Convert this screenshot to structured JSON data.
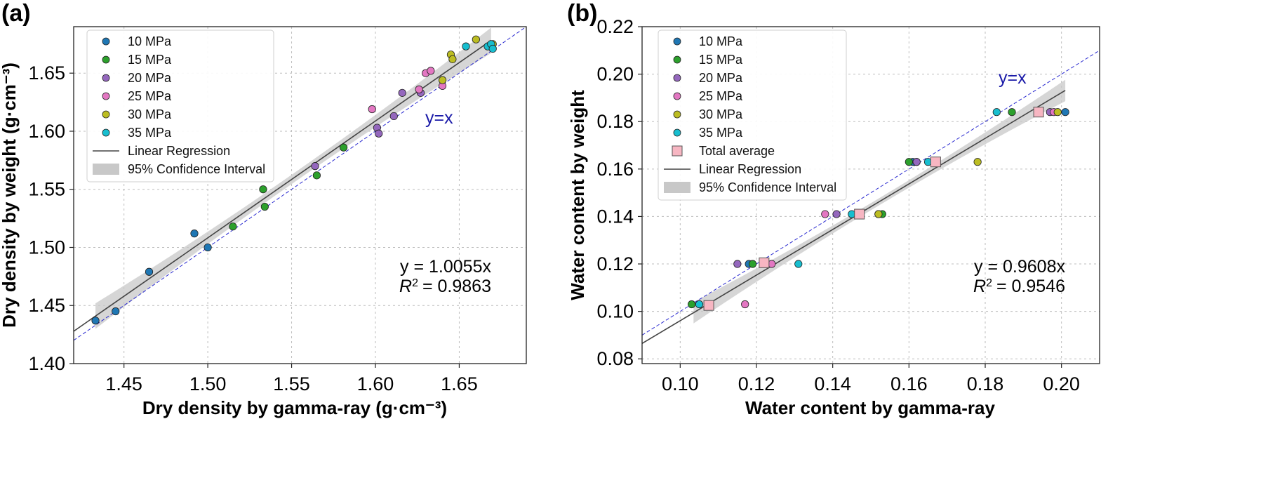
{
  "colors": {
    "10 MPa": "#1f77b4",
    "15 MPa": "#2ca02c",
    "20 MPa": "#9467bd",
    "25 MPa": "#e377c2",
    "30 MPa": "#bcbd22",
    "35 MPa": "#17becf",
    "average": "#f7b6c2",
    "regression": "#444444",
    "ci": "#c8c8c8",
    "identity": "#2a2ad0"
  },
  "chart_data": [
    {
      "panel": "(a)",
      "type": "scatter",
      "xlabel": "Dry density by gamma-ray (g·cm⁻³)",
      "ylabel": "Dry density by weight (g·cm⁻³)",
      "xlim": [
        1.42,
        1.69
      ],
      "ylim": [
        1.4,
        1.69
      ],
      "xticks": [
        1.45,
        1.5,
        1.55,
        1.6,
        1.65
      ],
      "xtick_labels": [
        "1.45",
        "1.50",
        "1.55",
        "1.60",
        "1.65"
      ],
      "yticks": [
        1.4,
        1.45,
        1.5,
        1.55,
        1.6,
        1.65
      ],
      "ytick_labels": [
        "1.40",
        "1.45",
        "1.50",
        "1.55",
        "1.60",
        "1.65"
      ],
      "grid": true,
      "legend_position": "top-left",
      "series": [
        {
          "name": "10 MPa",
          "points": [
            [
              1.433,
              1.437
            ],
            [
              1.445,
              1.445
            ],
            [
              1.465,
              1.479
            ],
            [
              1.492,
              1.512
            ],
            [
              1.5,
              1.5
            ],
            [
              1.669,
              1.674
            ]
          ]
        },
        {
          "name": "15 MPa",
          "points": [
            [
              1.515,
              1.518
            ],
            [
              1.533,
              1.55
            ],
            [
              1.534,
              1.535
            ],
            [
              1.565,
              1.562
            ],
            [
              1.581,
              1.586
            ]
          ]
        },
        {
          "name": "20 MPa",
          "points": [
            [
              1.564,
              1.57
            ],
            [
              1.601,
              1.603
            ],
            [
              1.602,
              1.598
            ],
            [
              1.611,
              1.613
            ],
            [
              1.616,
              1.633
            ],
            [
              1.627,
              1.633
            ]
          ]
        },
        {
          "name": "25 MPa",
          "points": [
            [
              1.598,
              1.619
            ],
            [
              1.626,
              1.636
            ],
            [
              1.63,
              1.65
            ],
            [
              1.633,
              1.652
            ],
            [
              1.64,
              1.639
            ]
          ]
        },
        {
          "name": "30 MPa",
          "points": [
            [
              1.64,
              1.644
            ],
            [
              1.645,
              1.666
            ],
            [
              1.646,
              1.662
            ],
            [
              1.66,
              1.679
            ],
            [
              1.67,
              1.675
            ]
          ]
        },
        {
          "name": "35 MPa",
          "points": [
            [
              1.654,
              1.673
            ],
            [
              1.667,
              1.673
            ],
            [
              1.669,
              1.675
            ],
            [
              1.67,
              1.671
            ]
          ]
        }
      ],
      "regression": {
        "label": "Linear Regression",
        "slope": 1.0055,
        "x_range": [
          1.42,
          1.669
        ]
      },
      "confidence_interval": {
        "label": "95% Confidence Interval",
        "x_range": [
          1.433,
          1.669
        ],
        "half_width_ends": 0.011,
        "half_width_mid": 0.004
      },
      "identity_label": "y=x",
      "equation": "y = 1.0055x",
      "r2_prefix": "R",
      "r2_value": "= 0.9863"
    },
    {
      "panel": "(b)",
      "type": "scatter",
      "xlabel": "Water content by gamma-ray",
      "ylabel": "Water content by weight",
      "xlim": [
        0.09,
        0.21
      ],
      "ylim": [
        0.078,
        0.22
      ],
      "xticks": [
        0.1,
        0.12,
        0.14,
        0.16,
        0.18,
        0.2
      ],
      "xtick_labels": [
        "0.10",
        "0.12",
        "0.14",
        "0.16",
        "0.18",
        "0.20"
      ],
      "yticks": [
        0.08,
        0.1,
        0.12,
        0.14,
        0.16,
        0.18,
        0.2,
        0.22
      ],
      "ytick_labels": [
        "0.08",
        "0.10",
        "0.12",
        "0.14",
        "0.16",
        "0.18",
        "0.20",
        "0.22"
      ],
      "grid": true,
      "legend_position": "top-left",
      "series": [
        {
          "name": "10 MPa",
          "points": [
            [
              0.161,
              0.163
            ],
            [
              0.162,
              0.163
            ],
            [
              0.201,
              0.184
            ],
            [
              0.118,
              0.12
            ]
          ]
        },
        {
          "name": "15 MPa",
          "points": [
            [
              0.103,
              0.103
            ],
            [
              0.119,
              0.12
            ],
            [
              0.152,
              0.141
            ],
            [
              0.153,
              0.141
            ],
            [
              0.16,
              0.163
            ],
            [
              0.187,
              0.184
            ]
          ]
        },
        {
          "name": "20 MPa",
          "points": [
            [
              0.115,
              0.12
            ],
            [
              0.141,
              0.141
            ],
            [
              0.162,
              0.163
            ],
            [
              0.197,
              0.184
            ]
          ]
        },
        {
          "name": "25 MPa",
          "points": [
            [
              0.117,
              0.103
            ],
            [
              0.124,
              0.12
            ],
            [
              0.138,
              0.141
            ],
            [
              0.198,
              0.184
            ]
          ]
        },
        {
          "name": "30 MPa",
          "points": [
            [
              0.152,
              0.141
            ],
            [
              0.178,
              0.163
            ],
            [
              0.199,
              0.184
            ]
          ]
        },
        {
          "name": "35 MPa",
          "points": [
            [
              0.105,
              0.103
            ],
            [
              0.131,
              0.12
            ],
            [
              0.145,
              0.141
            ],
            [
              0.165,
              0.163
            ],
            [
              0.183,
              0.184
            ]
          ]
        },
        {
          "name": "Total average",
          "marker": "square",
          "points": [
            [
              0.1075,
              0.1025
            ],
            [
              0.122,
              0.1205
            ],
            [
              0.147,
              0.141
            ],
            [
              0.167,
              0.163
            ],
            [
              0.194,
              0.184
            ]
          ]
        }
      ],
      "regression": {
        "label": "Linear Regression",
        "slope": 0.9608,
        "x_range": [
          0.09,
          0.201
        ]
      },
      "confidence_interval": {
        "label": "95% Confidence Interval",
        "x_range": [
          0.1035,
          0.201
        ],
        "half_width_ends": 0.0045,
        "half_width_mid": 0.0015
      },
      "identity_label": "y=x",
      "equation": "y = 0.9608x",
      "r2_prefix": "R",
      "r2_value": "= 0.9546"
    }
  ]
}
